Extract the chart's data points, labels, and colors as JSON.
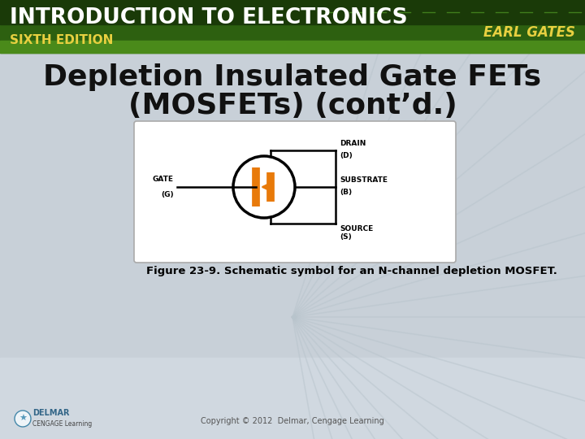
{
  "title_line1": "Depletion Insulated Gate FETs",
  "title_line2": "(MOSFETs) (cont’d.)",
  "header_text1": "INTRODUCTION TO ELECTRONICS",
  "header_text2": "SIXTH EDITION",
  "header_right": "EARL GATES",
  "figure_caption": "Figure 23-9. Schematic symbol for an N-channel depletion MOSFET.",
  "copyright": "Copyright © 2012  Delmar, Cengage Learning",
  "bg_top_color": "#c8d4d0",
  "bg_bottom_color": "#d8dfe8",
  "header_bg_dark": "#1a3a08",
  "header_bg_mid": "#2d6010",
  "header_bg_light": "#4a8a1a",
  "white_panel": "#ffffff",
  "orange_color": "#e87a0a",
  "black_color": "#111111",
  "label_fontsize": 6.5,
  "caption_fontsize": 9.5
}
